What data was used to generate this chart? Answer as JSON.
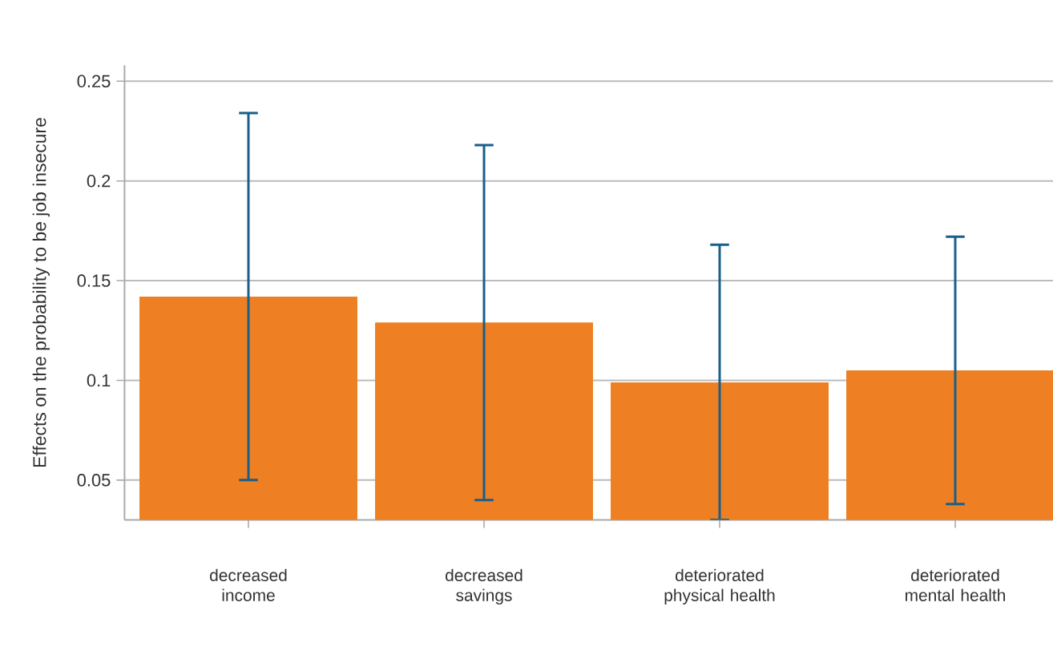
{
  "chart_data": {
    "type": "bar",
    "ylabel": "Effects on the probability to be job insecure",
    "categories": [
      "decreased income",
      "decreased savings",
      "deteriorated physical health",
      "deteriorated mental health"
    ],
    "values": [
      0.142,
      0.129,
      0.099,
      0.105
    ],
    "errors": [
      0.092,
      0.089,
      0.069,
      0.067
    ],
    "color": "#ee7f22",
    "ylim": [
      0.03,
      0.258
    ],
    "yticks": [
      0.05,
      0.1,
      0.15,
      0.2,
      0.25
    ],
    "grid": "y"
  }
}
